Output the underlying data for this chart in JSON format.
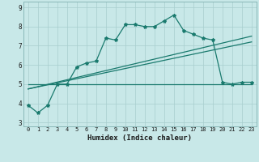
{
  "xlabel": "Humidex (Indice chaleur)",
  "x_values": [
    0,
    1,
    2,
    3,
    4,
    5,
    6,
    7,
    8,
    9,
    10,
    11,
    12,
    13,
    14,
    15,
    16,
    17,
    18,
    19,
    20,
    21,
    22,
    23
  ],
  "main_line_y": [
    3.9,
    3.5,
    3.9,
    5.0,
    5.0,
    5.9,
    6.1,
    6.2,
    7.4,
    7.3,
    8.1,
    8.1,
    8.0,
    8.0,
    8.3,
    8.6,
    7.8,
    7.6,
    7.4,
    7.3,
    5.1,
    5.0,
    5.1,
    5.1
  ],
  "flat_line_x": [
    0,
    23
  ],
  "flat_line_y": [
    5.0,
    5.0
  ],
  "reg_line1_x": [
    0,
    23
  ],
  "reg_line1_y": [
    4.75,
    7.5
  ],
  "reg_line2_x": [
    0,
    23
  ],
  "reg_line2_y": [
    4.75,
    7.2
  ],
  "color": "#1a7a6e",
  "background_color": "#c8e8e8",
  "grid_color": "#a8cece",
  "ylim": [
    2.8,
    9.3
  ],
  "xlim": [
    -0.5,
    23.5
  ],
  "yticks": [
    3,
    4,
    5,
    6,
    7,
    8,
    9
  ],
  "xticks": [
    0,
    1,
    2,
    3,
    4,
    5,
    6,
    7,
    8,
    9,
    10,
    11,
    12,
    13,
    14,
    15,
    16,
    17,
    18,
    19,
    20,
    21,
    22,
    23
  ],
  "tick_fontsize": 5.0,
  "xlabel_fontsize": 6.5
}
